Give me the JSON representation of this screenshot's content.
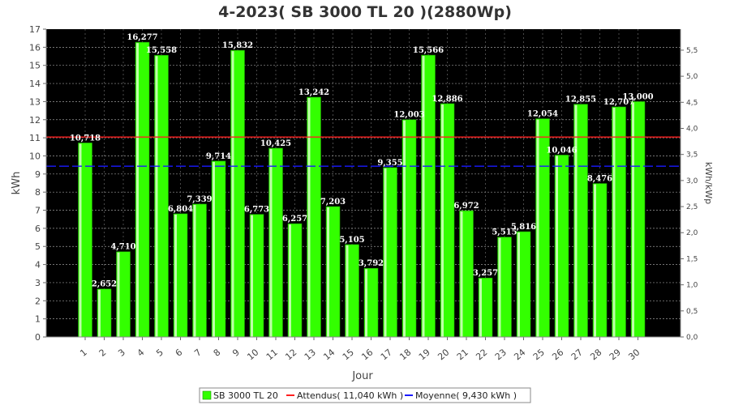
{
  "chart_data": {
    "type": "bar",
    "title": "4-2023( SB 3000 TL 20 )(2880Wp)",
    "xlabel": "Jour",
    "ylabel": "kWh",
    "y2label": "kWh/kWp",
    "categories": [
      "1",
      "2",
      "3",
      "4",
      "5",
      "6",
      "7",
      "8",
      "9",
      "10",
      "11",
      "12",
      "13",
      "14",
      "15",
      "16",
      "17",
      "18",
      "19",
      "20",
      "21",
      "22",
      "23",
      "24",
      "25",
      "26",
      "27",
      "28",
      "29",
      "30"
    ],
    "series": [
      {
        "name": "SB 3000 TL 20",
        "color": "#33ff00",
        "values": [
          10.718,
          2.652,
          4.71,
          16.277,
          15.558,
          6.804,
          7.339,
          9.714,
          15.832,
          6.773,
          10.425,
          6.257,
          13.242,
          7.203,
          5.105,
          3.792,
          9.355,
          12.003,
          15.566,
          12.886,
          6.972,
          3.257,
          5.515,
          5.816,
          12.054,
          10.046,
          12.855,
          8.476,
          12.707,
          13.0
        ]
      }
    ],
    "data_labels": [
      "10,718",
      "2,652",
      "4,710",
      "16,277",
      "15,558",
      "6,804",
      "7,339",
      "9,714",
      "15,832",
      "6,773",
      "10,425",
      "6,257",
      "13,242",
      "7,203",
      "5,105",
      "3,792",
      "9,355",
      "12,003",
      "15,566",
      "12,886",
      "6,972",
      "3,257",
      "5,515",
      "5,816",
      "12,054",
      "10,046",
      "12,855",
      "8,476",
      "12,707",
      "13,000"
    ],
    "reference_lines": [
      {
        "label": "Attendus( 11,040 kWh )",
        "value": 11.04,
        "color": "#ff2020",
        "style": "solid"
      },
      {
        "label": "Moyenne( 9,430 kWh )",
        "value": 9.43,
        "color": "#1a1aff",
        "style": "dashed"
      }
    ],
    "ylim": [
      0,
      17
    ],
    "yticks": [
      0,
      1,
      2,
      3,
      4,
      5,
      6,
      7,
      8,
      9,
      10,
      11,
      12,
      13,
      14,
      15,
      16,
      17
    ],
    "y2ticks": [
      "0,0",
      "0,5",
      "1,0",
      "1,5",
      "2,0",
      "2,5",
      "3,0",
      "3,5",
      "4,0",
      "4,5",
      "5,0",
      "5,5"
    ],
    "y2_per_unit": 2880,
    "grid": true,
    "legend_position": "bottom",
    "background": "#000000"
  },
  "legend": [
    {
      "label": "SB 3000 TL 20",
      "type": "box",
      "color": "#33ff00"
    },
    {
      "label": "Attendus( 11,040 kWh )",
      "type": "line",
      "color": "#ff2020"
    },
    {
      "label": "Moyenne( 9,430 kWh )",
      "type": "line",
      "color": "#1a1aff"
    }
  ]
}
